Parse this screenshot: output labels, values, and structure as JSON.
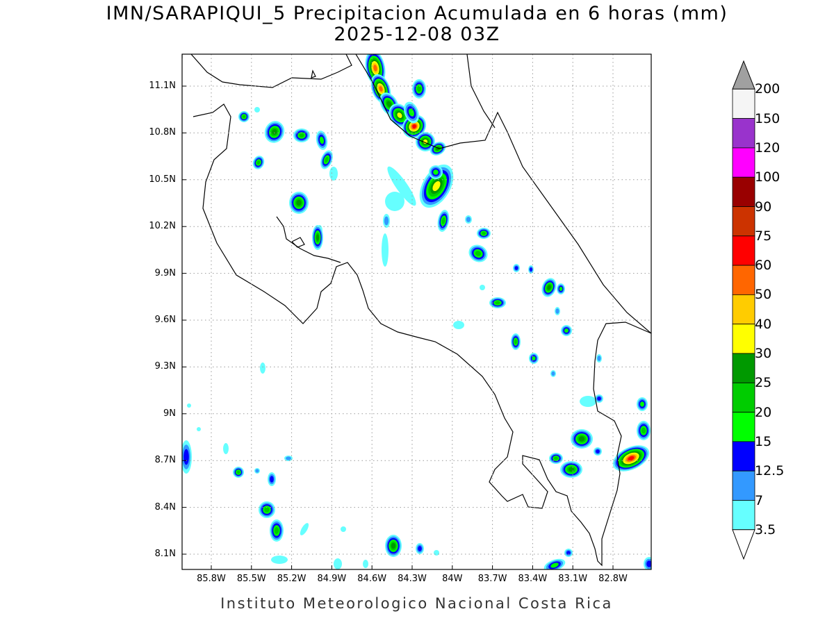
{
  "title": {
    "line1": "IMN/SARAPIQUI_5 Precipitacion Acumulada en 6 horas (mm)",
    "line2": "2025-12-08 03Z"
  },
  "footer": "Instituto Meteorologico Nacional Costa Rica",
  "map": {
    "lon_range": [
      -86.05,
      -82.55
    ],
    "lat_range": [
      8.0,
      11.3
    ],
    "lat_ticks": [
      "11.1N",
      "10.8N",
      "10.5N",
      "10.2N",
      "9.9N",
      "9.6N",
      "9.3N",
      "9N",
      "8.7N",
      "8.4N",
      "8.1N"
    ],
    "lon_ticks": [
      "85.8W",
      "85.5W",
      "85.2W",
      "84.9W",
      "84.6W",
      "84.3W",
      "84W",
      "83.7W",
      "83.4W",
      "83.1W",
      "82.8W"
    ],
    "grid": "dotted"
  },
  "legend": {
    "unit": "mm",
    "labels": [
      "200",
      "150",
      "120",
      "100",
      "90",
      "75",
      "60",
      "50",
      "40",
      "30",
      "25",
      "20",
      "15",
      "12.5",
      "7",
      "3.5"
    ],
    "colors": [
      "#f5f5f5",
      "#9933cc",
      "#ff00ff",
      "#990000",
      "#cc3300",
      "#ff0000",
      "#ff6600",
      "#ffcc00",
      "#ffff00",
      "#009900",
      "#00cc00",
      "#00ff00",
      "#0000ff",
      "#3399ff",
      "#66ffff"
    ],
    "over_color": "#a0a0a0",
    "under_color": "#ffffff"
  }
}
